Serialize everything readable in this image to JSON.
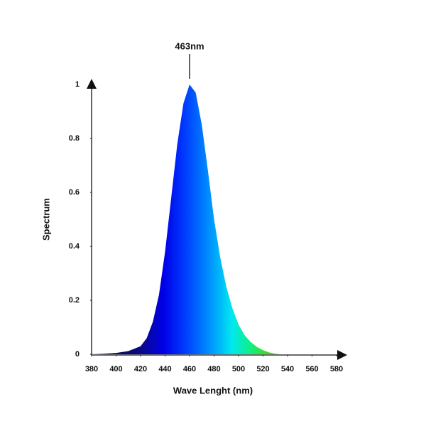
{
  "chart_data": {
    "type": "area",
    "annotation": "463nm",
    "xlabel": "Wave Lenght (nm)",
    "ylabel": "Spectrum",
    "x": [
      380,
      390,
      400,
      410,
      420,
      425,
      430,
      435,
      440,
      445,
      450,
      455,
      460,
      465,
      470,
      475,
      480,
      485,
      490,
      495,
      500,
      505,
      510,
      515,
      520,
      525,
      530,
      535
    ],
    "values": [
      0,
      0.002,
      0.005,
      0.012,
      0.03,
      0.06,
      0.12,
      0.22,
      0.38,
      0.58,
      0.78,
      0.93,
      1.0,
      0.97,
      0.85,
      0.68,
      0.5,
      0.36,
      0.25,
      0.17,
      0.11,
      0.07,
      0.045,
      0.027,
      0.015,
      0.007,
      0.002,
      0
    ],
    "colors": [
      "#0a0a5a",
      "#0a0a80",
      "#0000e8",
      "#0040ff",
      "#0090ff",
      "#00e8f0",
      "#10f080",
      "#40d820"
    ],
    "xlim": [
      380,
      580
    ],
    "xticks": [
      380,
      400,
      420,
      440,
      460,
      480,
      500,
      520,
      540,
      560,
      580
    ],
    "ylim": [
      0,
      1
    ],
    "yticks": [
      0,
      0.2,
      0.4,
      0.6,
      0.8,
      1
    ]
  }
}
